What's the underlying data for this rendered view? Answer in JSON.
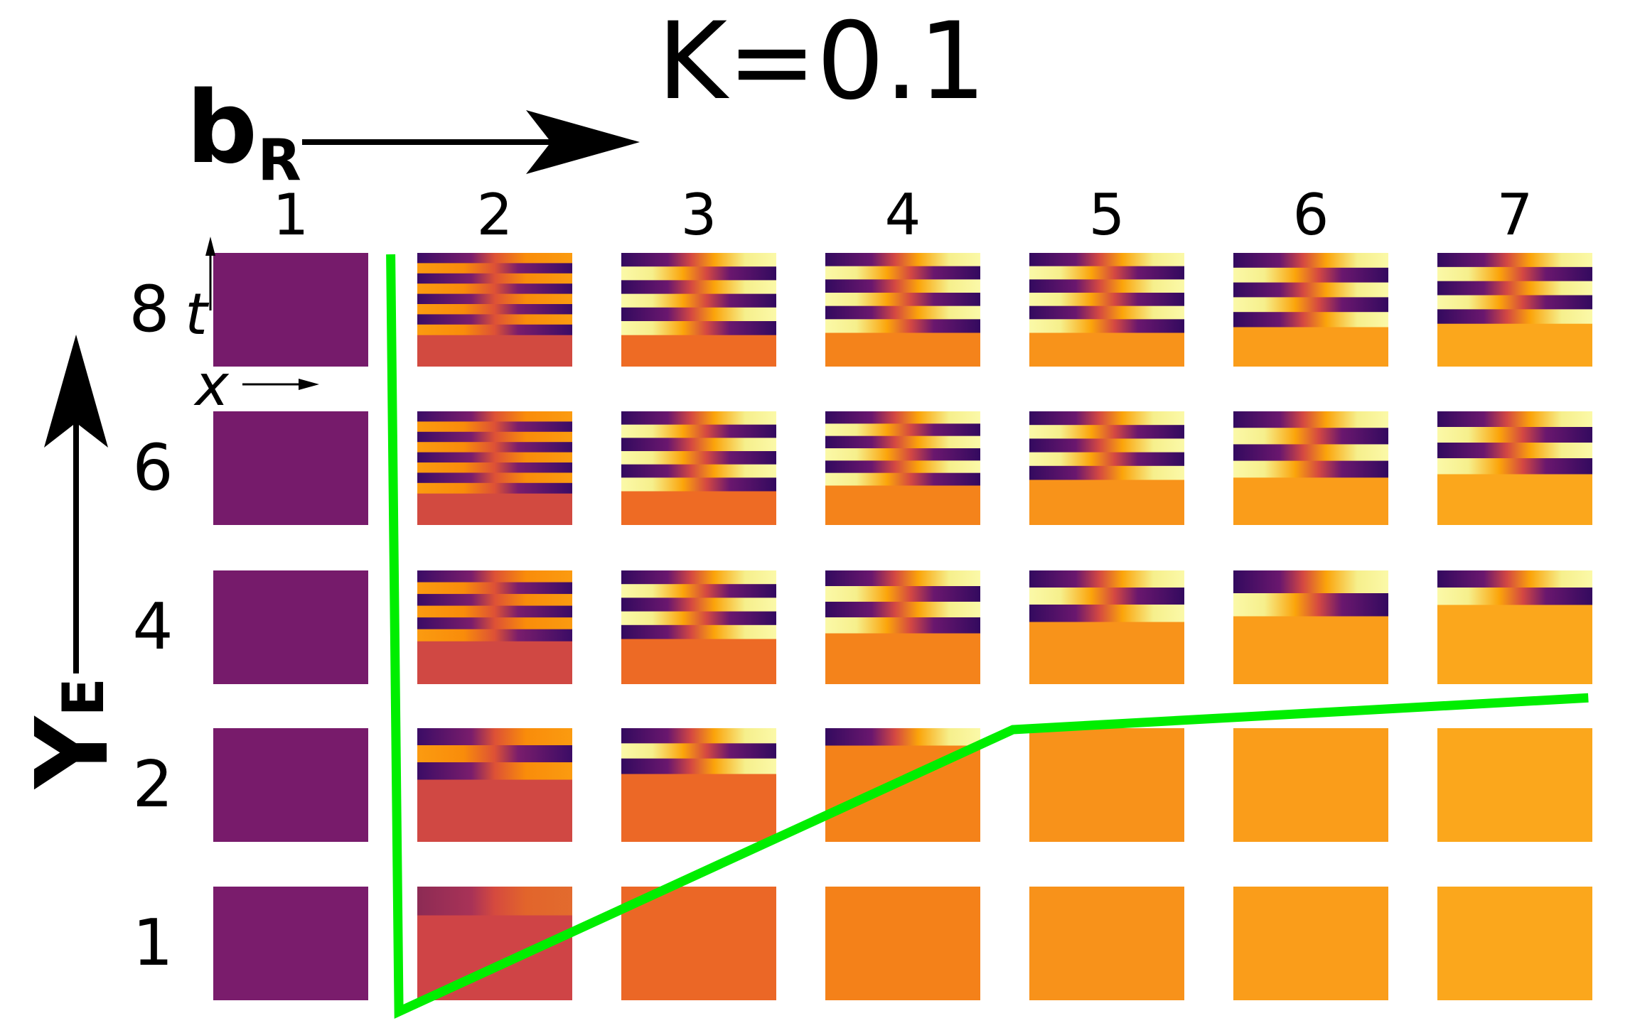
{
  "chart_data": {
    "type": "heatmap",
    "title": "K=0.1",
    "xlabel": "b",
    "xlabel_sub": "R",
    "ylabel": "Y",
    "ylabel_sub": "E",
    "inset_x_axis": "x",
    "inset_y_axis": "t",
    "x_ticks": [
      "1",
      "2",
      "3",
      "4",
      "5",
      "6",
      "7"
    ],
    "y_ticks": [
      "8",
      "6",
      "4",
      "2",
      "1"
    ],
    "boundary_color": "#00ee00",
    "boundary": [
      [
        1.49,
        8.7
      ],
      [
        1.53,
        0.57
      ],
      [
        4.54,
        2.7
      ],
      [
        7.36,
        3.1
      ]
    ],
    "colormap": "inferno",
    "cells": [
      {
        "Y_E": 8,
        "base": [
          "#761b6b",
          "#d24a40",
          "#ee6b24",
          "#f4831b",
          "#f8931a",
          "#fa9d1a",
          "#fba71c"
        ],
        "stripes": [
          0,
          8,
          6,
          6,
          6,
          5,
          5
        ],
        "extent": [
          0,
          0.72,
          0.72,
          0.7,
          0.7,
          0.65,
          0.62
        ]
      },
      {
        "Y_E": 6,
        "base": [
          "#761b6b",
          "#d24a40",
          "#ee6b24",
          "#f4831b",
          "#f8931a",
          "#fa9d1a",
          "#fba71c"
        ],
        "stripes": [
          0,
          8,
          6,
          6,
          5,
          4,
          4
        ],
        "extent": [
          0,
          0.72,
          0.7,
          0.65,
          0.6,
          0.58,
          0.55
        ]
      },
      {
        "Y_E": 4,
        "base": [
          "#761b6b",
          "#d04843",
          "#ed6a25",
          "#f4831b",
          "#f8931a",
          "#fa9d1a",
          "#fba71c"
        ],
        "stripes": [
          0,
          6,
          5,
          4,
          3,
          2,
          2
        ],
        "extent": [
          0,
          0.62,
          0.6,
          0.55,
          0.45,
          0.4,
          0.3
        ]
      },
      {
        "Y_E": 2,
        "base": [
          "#781b6b",
          "#d04843",
          "#ec6826",
          "#f48219",
          "#f8921a",
          "#fa9d1a",
          "#fba71c"
        ],
        "stripes": [
          0,
          3,
          3,
          1,
          0,
          0,
          0
        ],
        "extent": [
          0,
          0.45,
          0.4,
          0.15,
          0,
          0,
          0
        ]
      },
      {
        "Y_E": 1,
        "base": [
          "#7a1c6c",
          "#cf4446",
          "#eb6726",
          "#f48119",
          "#f8921a",
          "#fa9d1a",
          "#fba71c"
        ],
        "stripes": [
          0,
          1,
          0,
          0,
          0,
          0,
          0
        ],
        "extent": [
          0,
          0.25,
          0,
          0,
          0,
          0,
          0
        ]
      }
    ]
  }
}
